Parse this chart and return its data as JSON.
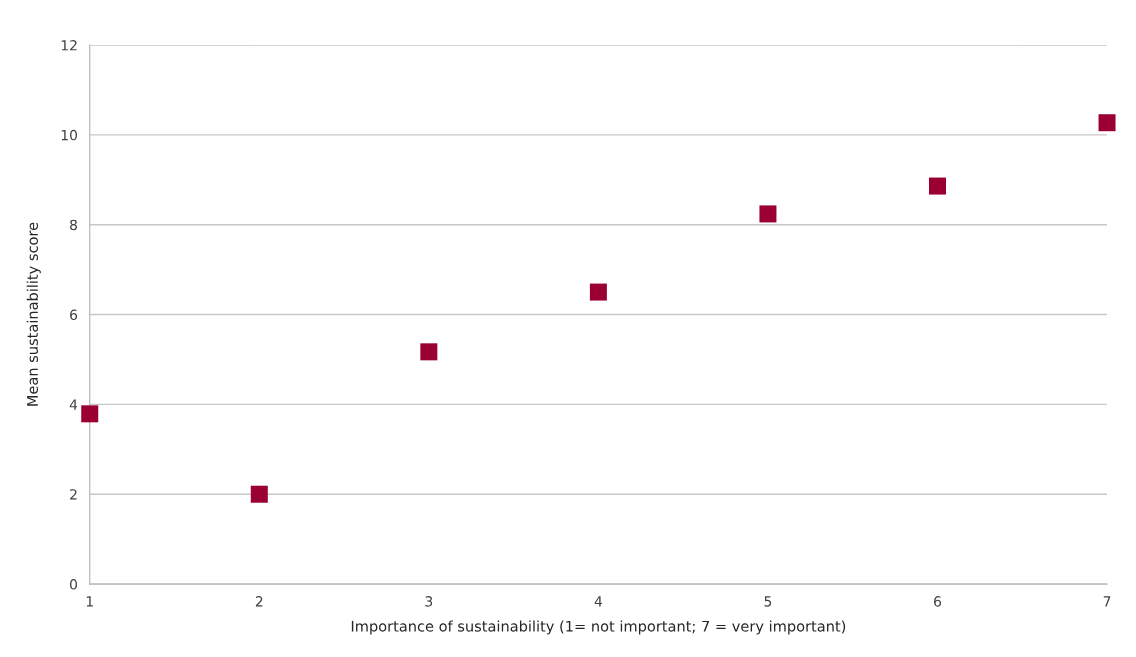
{
  "chart_data": {
    "type": "scatter",
    "xlabel": "Importance of sustainability (1= not important; 7 = very important)",
    "ylabel": "Mean sustainability score",
    "x": [
      1,
      2,
      3,
      4,
      5,
      6,
      7
    ],
    "series": [
      {
        "color": "#9b0033",
        "values": [
          3.79,
          2.0,
          5.17,
          6.5,
          8.24,
          8.86,
          10.27
        ]
      }
    ],
    "xlim": [
      1,
      7
    ],
    "xticks": [
      1,
      2,
      3,
      4,
      5,
      6,
      7
    ],
    "ylim": [
      0,
      12
    ],
    "yticks": [
      0,
      2,
      4,
      6,
      8,
      10,
      12
    ],
    "grid": "y",
    "marker": "square"
  }
}
